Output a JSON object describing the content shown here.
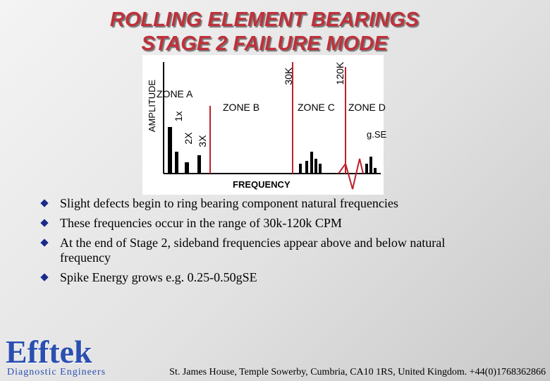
{
  "header": {
    "title_lines": [
      "ROLLING  ELEMENT  BEARINGS",
      "STAGE 2  FAILURE  MODE"
    ]
  },
  "diagram": {
    "y_axis_label": "AMPLITUDE",
    "x_axis_label": "FREQUENCY",
    "zones": [
      "ZONE A",
      "ZONE B",
      "ZONE C",
      "ZONE D"
    ],
    "harmonics": [
      "1x",
      "2X",
      "3X"
    ],
    "markers": [
      "30K",
      "120K"
    ],
    "band_label": "g.SE"
  },
  "bullets": [
    "Slight defects begin to ring bearing component natural frequencies",
    "These frequencies occur in the range of 30k-120k CPM",
    "At the end of Stage 2, sideband frequencies appear above and below natural frequency",
    "Spike Energy grows e.g. 0.25-0.50gSE"
  ],
  "footer": {
    "brand": "Efftek",
    "tagline": "Diagnostic Engineers",
    "address": "St. James House, Temple Sowerby, Cumbria, CA10 1RS, United Kingdom. +44(0)1768362866"
  }
}
